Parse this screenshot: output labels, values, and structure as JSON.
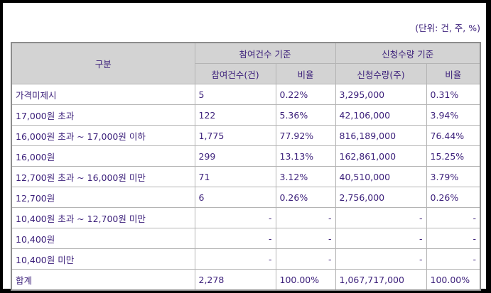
{
  "unit_note": "(단위: 건, 주, %)",
  "header": {
    "category": "구분",
    "group1": "참여건수 기준",
    "group2": "신청수량 기준",
    "count": "참여건수(건)",
    "ratio1": "비율",
    "qty": "신청수량(주)",
    "ratio2": "비율"
  },
  "rows": [
    [
      "가격미제시",
      "5",
      "0.22%",
      "3,295,000",
      "0.31%"
    ],
    [
      "17,000원 초과",
      "122",
      "5.36%",
      "42,106,000",
      "3.94%"
    ],
    [
      "16,000원 초과 ~ 17,000원 이하",
      "1,775",
      "77.92%",
      "816,189,000",
      "76.44%"
    ],
    [
      "16,000원",
      "299",
      "13.13%",
      "162,861,000",
      "15.25%"
    ],
    [
      "12,700원 초과 ~ 16,000원 미만",
      "71",
      "3.12%",
      "40,510,000",
      "3.79%"
    ],
    [
      "12,700원",
      "6",
      "0.26%",
      "2,756,000",
      "0.26%"
    ],
    [
      "10,400원 초과 ~ 12,700원 미만",
      "-",
      "-",
      "-",
      "-"
    ],
    [
      "10,400원",
      "-",
      "-",
      "-",
      "-"
    ],
    [
      "10,400원 미만",
      "-",
      "-",
      "-",
      "-"
    ],
    [
      "합계",
      "2,278",
      "100.00%",
      "1,067,717,000",
      "100.00%"
    ]
  ]
}
